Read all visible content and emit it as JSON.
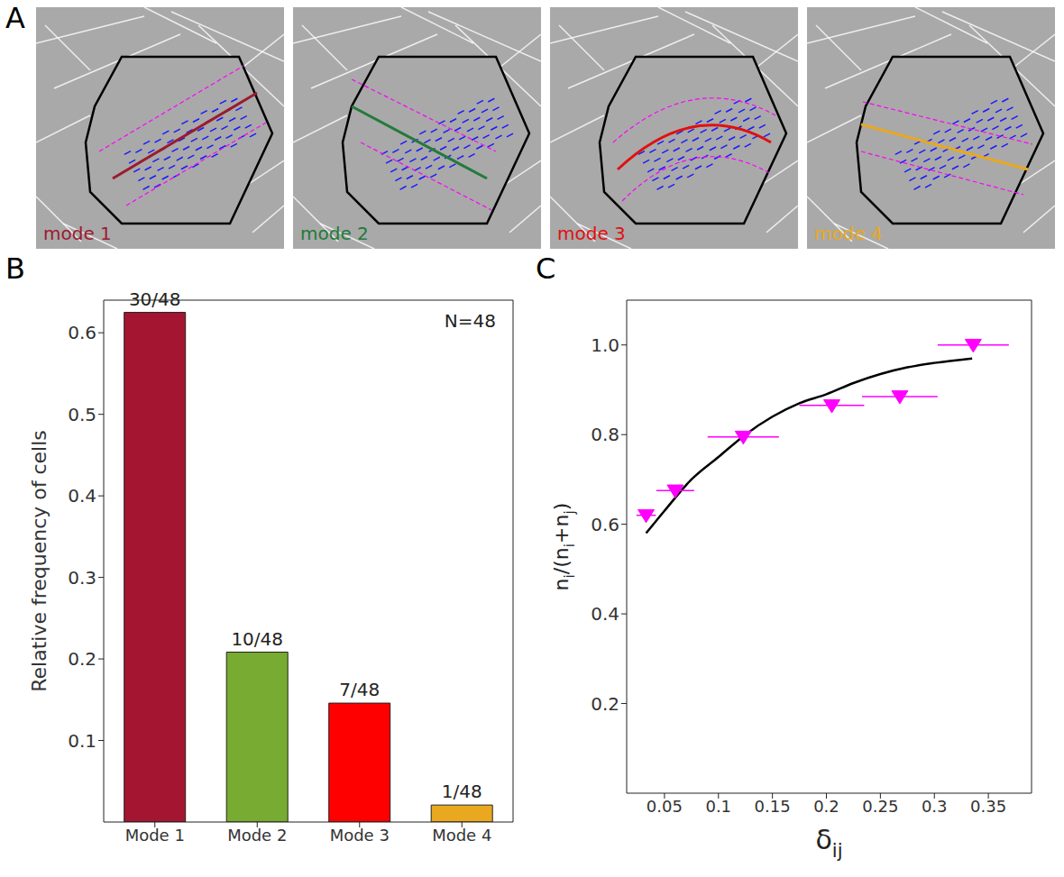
{
  "panel_a": {
    "panel": "A",
    "images": [
      {
        "label": "mode 1",
        "color": "#9b1b30"
      },
      {
        "label": "mode 2",
        "color": "#237a3b"
      },
      {
        "label": "mode 3",
        "color": "#e01010"
      },
      {
        "label": "mode 4",
        "color": "#e8a820"
      }
    ]
  },
  "chart_data": [
    {
      "type": "bar",
      "panel": "B",
      "categories": [
        "Mode 1",
        "Mode 2",
        "Mode 3",
        "Mode 4"
      ],
      "values": [
        0.625,
        0.208333,
        0.145833,
        0.020833
      ],
      "value_labels": [
        "30/48",
        "10/48",
        "7/48",
        "1/48"
      ],
      "data_labels": true,
      "colors": [
        "#a31530",
        "#78ab31",
        "#ff0000",
        "#e9a820"
      ],
      "ylabel": "Relative frequency of cells",
      "ylim": [
        0,
        0.64
      ],
      "yticks": [
        0.1,
        0.2,
        0.3,
        0.4,
        0.5,
        0.6
      ],
      "annotation": "N=48"
    },
    {
      "type": "scatter",
      "panel": "C",
      "x": [
        0.033,
        0.06,
        0.123,
        0.205,
        0.268,
        0.336
      ],
      "values": [
        0.62,
        0.675,
        0.795,
        0.865,
        0.885,
        1.0
      ],
      "x_error": [
        0.009,
        0.0175,
        0.033,
        0.03,
        0.035,
        0.033
      ],
      "color": "#ff00ff",
      "marker": "triangle-down",
      "fit": {
        "type": "line",
        "color": "#000000",
        "x": [
          0.033,
          0.05,
          0.075,
          0.1,
          0.125,
          0.15,
          0.175,
          0.2,
          0.225,
          0.25,
          0.275,
          0.3,
          0.335
        ],
        "values": [
          0.58,
          0.63,
          0.7,
          0.75,
          0.8,
          0.84,
          0.87,
          0.89,
          0.915,
          0.935,
          0.95,
          0.96,
          0.97
        ]
      },
      "xlabel": "δij",
      "ylabel": "ni/(ni+nj)",
      "xlim": [
        0.015,
        0.39
      ],
      "xticks": [
        0.05,
        0.1,
        0.15,
        0.2,
        0.25,
        0.3,
        0.35
      ],
      "ylim": [
        0,
        1.1
      ],
      "yticks": [
        0.2,
        0.4,
        0.6,
        0.8,
        {
          "value": 1,
          "label": "1.0"
        }
      ]
    }
  ]
}
